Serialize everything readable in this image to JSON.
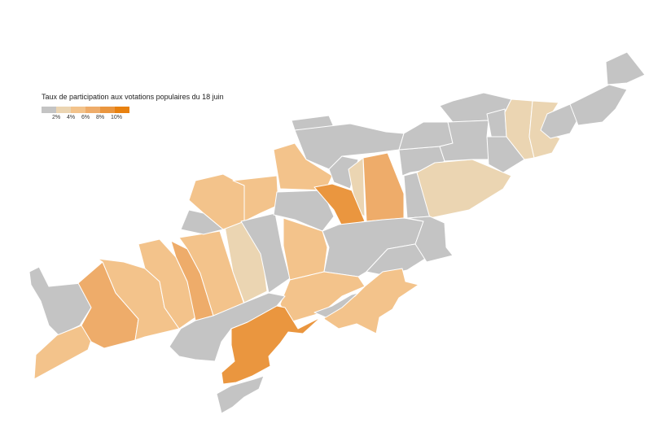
{
  "legend": {
    "title": "Taux de participation aux votations populaires du 18 juin",
    "ticks": [
      "2%",
      "4%",
      "6%",
      "8%",
      "10%"
    ]
  },
  "colors": {
    "bin0": "#c4c4c4",
    "bin1": "#ebd5b2",
    "bin2": "#f3c38b",
    "bin3": "#eeac6a",
    "bin4": "#ea963f",
    "bin5": "#e8810f"
  }
}
